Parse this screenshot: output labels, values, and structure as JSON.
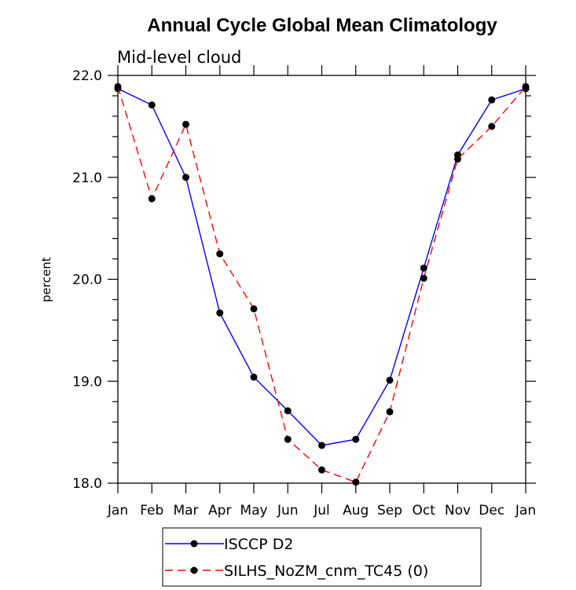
{
  "chart_data": {
    "type": "line",
    "title": "Annual Cycle Global Mean Climatology",
    "subtitle": "Mid-level cloud",
    "ylabel": "percent",
    "xlabel": "",
    "categories": [
      "Jan",
      "Feb",
      "Mar",
      "Apr",
      "May",
      "Jun",
      "Jul",
      "Aug",
      "Sep",
      "Oct",
      "Nov",
      "Dec",
      "Jan"
    ],
    "ylim": [
      18.0,
      22.0
    ],
    "yticks": [
      "18.0",
      "19.0",
      "20.0",
      "21.0",
      "22.0"
    ],
    "series": [
      {
        "name": "ISCCP D2",
        "color": "#0000ff",
        "dash": "solid",
        "values": [
          21.87,
          21.71,
          21.0,
          19.67,
          19.04,
          18.71,
          18.37,
          18.43,
          19.01,
          20.11,
          21.22,
          21.76,
          21.87
        ]
      },
      {
        "name": "SILHS_NoZM_cnm_TC45 (0)",
        "color": "#ff0000",
        "dash": "dashed",
        "values": [
          21.89,
          20.79,
          21.52,
          20.25,
          19.71,
          18.43,
          18.13,
          18.01,
          18.7,
          20.01,
          21.18,
          21.5,
          21.89
        ]
      }
    ],
    "grid": false,
    "legend_position": "bottom"
  }
}
